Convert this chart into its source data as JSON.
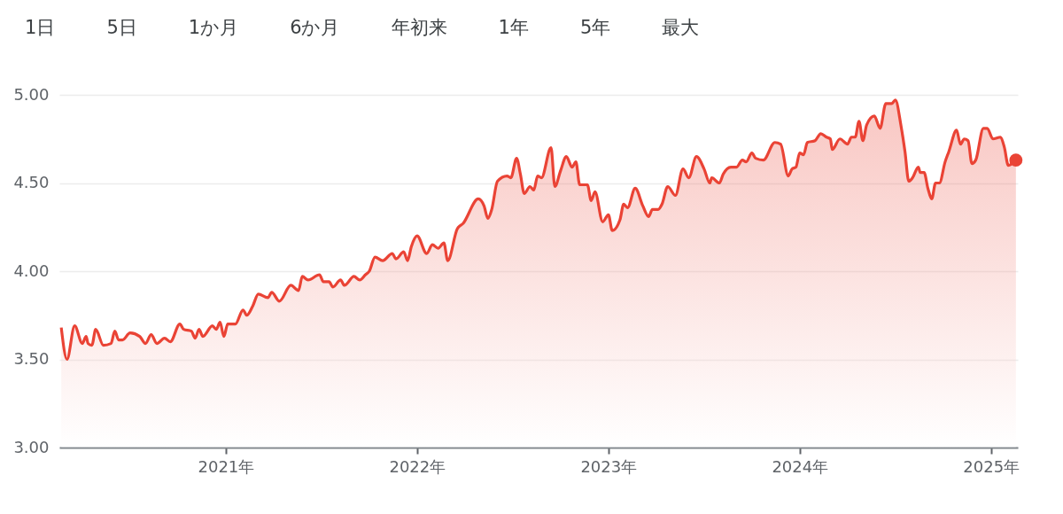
{
  "chart_data": {
    "type": "area",
    "annotations": [
      "1日",
      "5日",
      "1か月",
      "6か月",
      "年初来",
      "1年",
      "5年",
      "最大"
    ],
    "xlim": [
      2020.13,
      2025.14
    ],
    "xticks": [
      {
        "value": 2021,
        "label": "2021年"
      },
      {
        "value": 2022,
        "label": "2022年"
      },
      {
        "value": 2023,
        "label": "2023年"
      },
      {
        "value": 2024,
        "label": "2024年"
      },
      {
        "value": 2025,
        "label": "2025年"
      }
    ],
    "ylim": [
      3,
      5
    ],
    "yticks": [
      {
        "value": 3,
        "label": "3.00"
      },
      {
        "value": 3.5,
        "label": "3.50"
      },
      {
        "value": 4,
        "label": "4.00"
      },
      {
        "value": 4.5,
        "label": "4.50"
      },
      {
        "value": 5,
        "label": "5.00"
      }
    ],
    "grid": "y",
    "series": [
      {
        "color": "#ea4335",
        "x": [
          2020.14,
          2020.17,
          2020.21,
          2020.25,
          2020.27,
          2020.28,
          2020.3,
          2020.32,
          2020.36,
          2020.4,
          2020.42,
          2020.44,
          2020.46,
          2020.5,
          2020.55,
          2020.58,
          2020.61,
          2020.64,
          2020.68,
          2020.71,
          2020.76,
          2020.78,
          2020.82,
          2020.84,
          2020.86,
          2020.88,
          2020.93,
          2020.95,
          2020.97,
          2020.99,
          2021.01,
          2021.05,
          2021.09,
          2021.11,
          2021.14,
          2021.17,
          2021.22,
          2021.24,
          2021.28,
          2021.34,
          2021.38,
          2021.4,
          2021.43,
          2021.49,
          2021.51,
          2021.54,
          2021.56,
          2021.6,
          2021.62,
          2021.67,
          2021.7,
          2021.73,
          2021.75,
          2021.78,
          2021.82,
          2021.87,
          2021.89,
          2021.93,
          2021.95,
          2021.97,
          2022.0,
          2022.05,
          2022.08,
          2022.11,
          2022.14,
          2022.16,
          2022.21,
          2022.24,
          2022.32,
          2022.35,
          2022.37,
          2022.39,
          2022.42,
          2022.47,
          2022.49,
          2022.52,
          2022.54,
          2022.56,
          2022.59,
          2022.61,
          2022.63,
          2022.65,
          2022.7,
          2022.72,
          2022.75,
          2022.78,
          2022.81,
          2022.83,
          2022.85,
          2022.89,
          2022.91,
          2022.93,
          2022.97,
          2023.0,
          2023.02,
          2023.06,
          2023.08,
          2023.1,
          2023.14,
          2023.18,
          2023.21,
          2023.23,
          2023.26,
          2023.28,
          2023.31,
          2023.35,
          2023.39,
          2023.42,
          2023.46,
          2023.5,
          2023.53,
          2023.54,
          2023.58,
          2023.6,
          2023.64,
          2023.67,
          2023.7,
          2023.72,
          2023.75,
          2023.77,
          2023.81,
          2023.87,
          2023.9,
          2023.94,
          2023.96,
          2023.98,
          2024.0,
          2024.02,
          2024.04,
          2024.08,
          2024.11,
          2024.14,
          2024.16,
          2024.17,
          2024.21,
          2024.25,
          2024.27,
          2024.29,
          2024.31,
          2024.33,
          2024.35,
          2024.39,
          2024.42,
          2024.45,
          2024.48,
          2024.5,
          2024.53,
          2024.55,
          2024.57,
          2024.59,
          2024.62,
          2024.63,
          2024.65,
          2024.67,
          2024.69,
          2024.71,
          2024.73,
          2024.76,
          2024.78,
          2024.82,
          2024.84,
          2024.86,
          2024.88,
          2024.9,
          2024.92,
          2024.96,
          2024.98,
          2025.01,
          2025.05,
          2025.07,
          2025.09,
          2025.13
        ],
        "values": [
          3.68,
          3.5,
          3.69,
          3.59,
          3.63,
          3.59,
          3.58,
          3.67,
          3.58,
          3.59,
          3.66,
          3.61,
          3.61,
          3.65,
          3.63,
          3.59,
          3.64,
          3.59,
          3.62,
          3.6,
          3.7,
          3.67,
          3.66,
          3.62,
          3.67,
          3.63,
          3.69,
          3.67,
          3.71,
          3.63,
          3.7,
          3.7,
          3.78,
          3.75,
          3.8,
          3.87,
          3.85,
          3.88,
          3.83,
          3.92,
          3.89,
          3.97,
          3.95,
          3.98,
          3.94,
          3.94,
          3.91,
          3.95,
          3.92,
          3.97,
          3.95,
          3.98,
          4.0,
          4.08,
          4.06,
          4.1,
          4.07,
          4.11,
          4.06,
          4.14,
          4.2,
          4.1,
          4.15,
          4.13,
          4.16,
          4.06,
          4.24,
          4.27,
          4.41,
          4.37,
          4.3,
          4.35,
          4.51,
          4.54,
          4.53,
          4.64,
          4.55,
          4.44,
          4.48,
          4.46,
          4.54,
          4.53,
          4.7,
          4.48,
          4.57,
          4.65,
          4.59,
          4.62,
          4.49,
          4.49,
          4.4,
          4.45,
          4.28,
          4.32,
          4.23,
          4.29,
          4.38,
          4.36,
          4.47,
          4.37,
          4.31,
          4.35,
          4.35,
          4.38,
          4.48,
          4.43,
          4.58,
          4.53,
          4.65,
          4.58,
          4.5,
          4.53,
          4.5,
          4.55,
          4.59,
          4.59,
          4.63,
          4.62,
          4.67,
          4.64,
          4.63,
          4.73,
          4.72,
          4.54,
          4.58,
          4.59,
          4.67,
          4.66,
          4.73,
          4.74,
          4.78,
          4.76,
          4.75,
          4.69,
          4.75,
          4.72,
          4.76,
          4.76,
          4.85,
          4.74,
          4.83,
          4.88,
          4.81,
          4.95,
          4.95,
          4.97,
          4.82,
          4.68,
          4.51,
          4.53,
          4.59,
          4.56,
          4.56,
          4.47,
          4.41,
          4.5,
          4.5,
          4.62,
          4.68,
          4.8,
          4.72,
          4.75,
          4.74,
          4.61,
          4.63,
          4.81,
          4.81,
          4.75,
          4.76,
          4.7,
          4.6,
          4.63
        ]
      }
    ]
  }
}
